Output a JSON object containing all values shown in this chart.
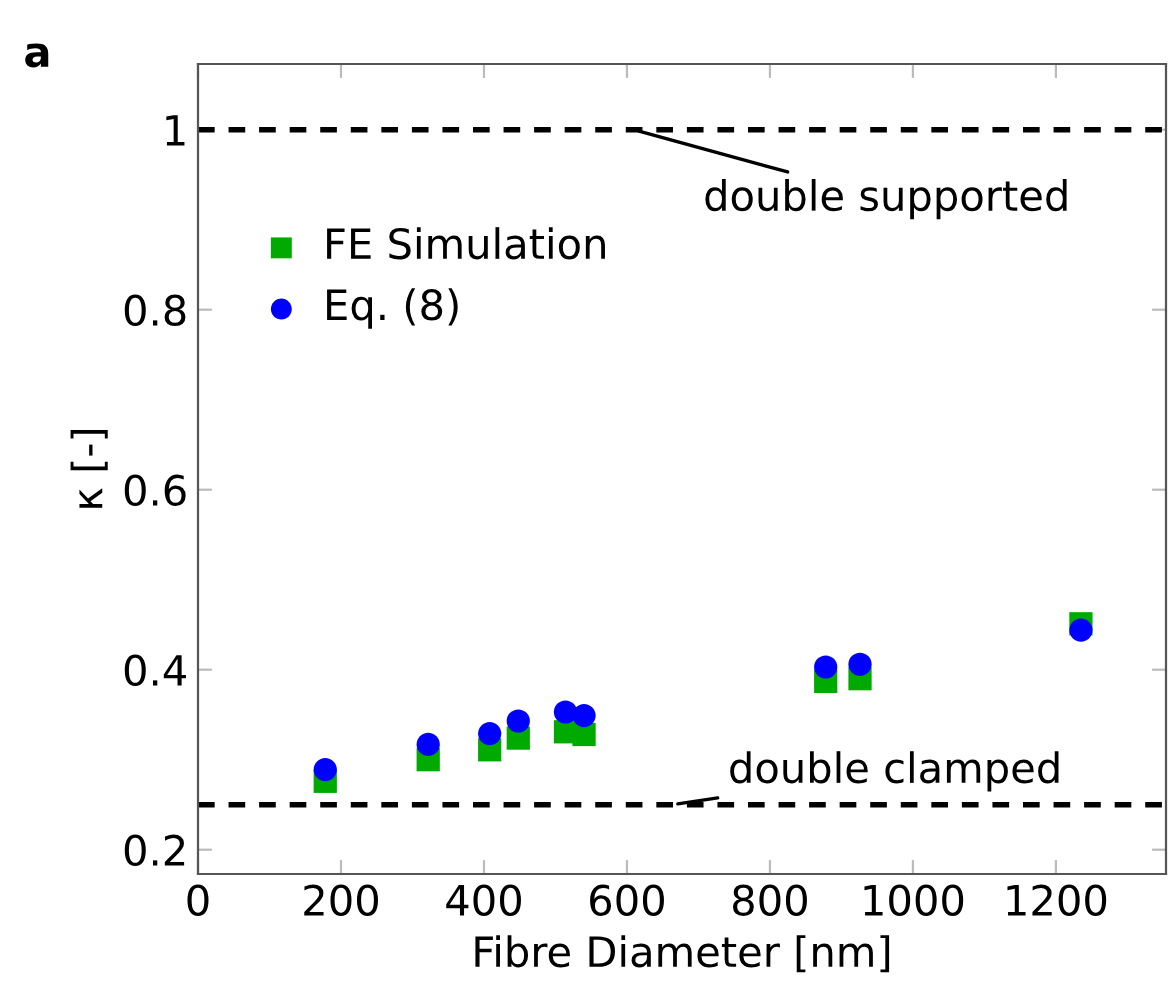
{
  "chart_data": {
    "type": "scatter",
    "xlabel": "Fibre Diameter [nm]",
    "ylabel": "κ [-]",
    "xlim": [
      0,
      1354
    ],
    "ylim": [
      0.173,
      1.073
    ],
    "xticks": [
      0,
      200,
      400,
      600,
      800,
      1000,
      1200
    ],
    "yticks": [
      0.2,
      0.4,
      0.6,
      0.8,
      1
    ],
    "x": [
      178,
      322,
      408,
      448,
      514,
      540,
      878,
      926,
      1235
    ],
    "series": [
      {
        "name": "FE Simulation",
        "color": "#00aa00",
        "marker": "square",
        "values": [
          0.276,
          0.3,
          0.311,
          0.324,
          0.331,
          0.328,
          0.387,
          0.39,
          0.451
        ]
      },
      {
        "name": "Eq. (8)",
        "color": "#0000ff",
        "marker": "circle",
        "values": [
          0.289,
          0.317,
          0.329,
          0.343,
          0.353,
          0.349,
          0.403,
          0.406,
          0.444
        ]
      }
    ],
    "ref_lines": [
      {
        "axis": "y",
        "value": 1,
        "label": "double supported",
        "color": "#000000",
        "line_style": "dashed"
      },
      {
        "axis": "y",
        "value": 0.25,
        "label": "double clamped",
        "color": "#000000",
        "line_style": "dashed"
      }
    ],
    "annotations": [
      "a"
    ],
    "legend": "top left",
    "grid": false
  }
}
